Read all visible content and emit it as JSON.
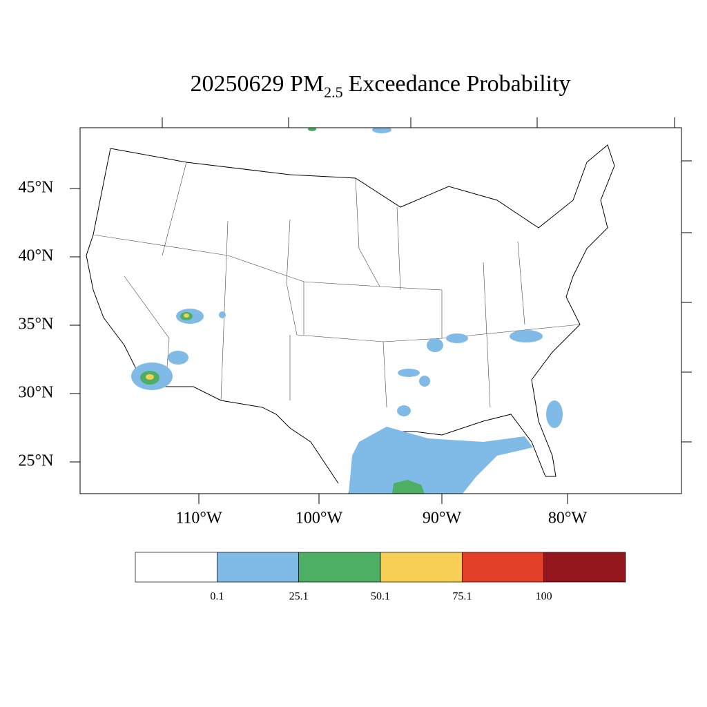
{
  "title": {
    "main": "20250629 PM",
    "subscript": "2.5",
    "rest": "Exceedance Probability"
  },
  "lat_labels": [
    "45°N",
    "40°N",
    "35°N",
    "30°N",
    "25°N"
  ],
  "lon_labels": [
    "110°W",
    "100°W",
    "90°W",
    "80°W"
  ],
  "legend": {
    "colors": [
      "#ffffff",
      "#7fbbe6",
      "#4caf63",
      "#f8cf55",
      "#e3402a",
      "#93161c"
    ],
    "labels": [
      0.1,
      25.1,
      50.1,
      75.1,
      100
    ]
  }
}
